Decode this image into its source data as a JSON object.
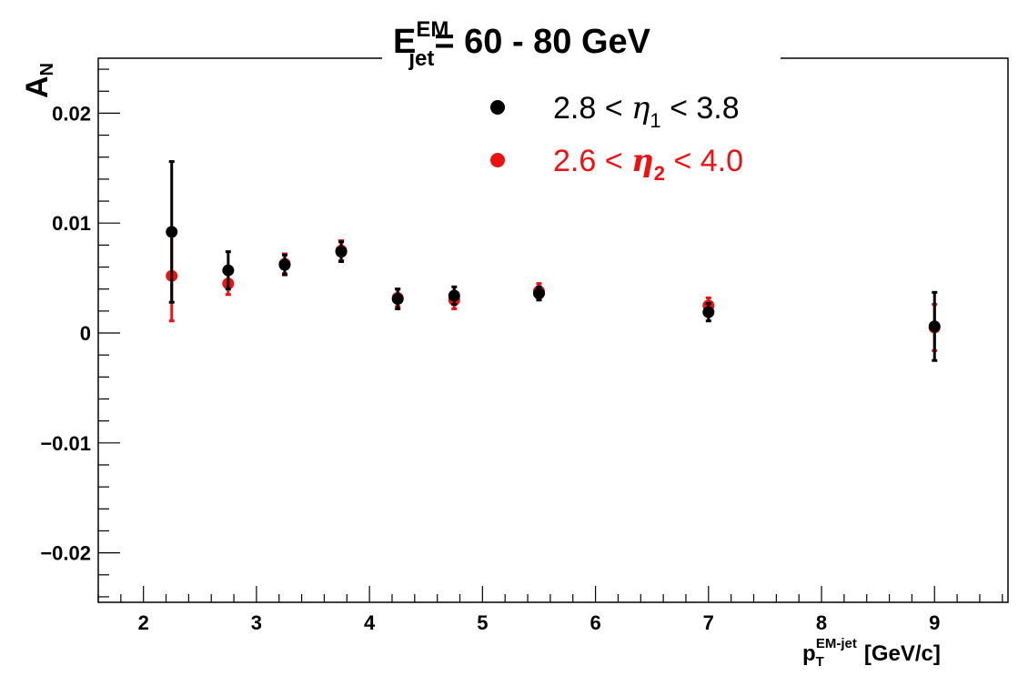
{
  "chart_data": {
    "type": "scatter",
    "title": {
      "main": "E",
      "sup": "EM",
      "sub": "jet",
      "rest": "= 60 - 80 GeV"
    },
    "ylabel": {
      "main": "A",
      "sub": "N"
    },
    "xlabel": {
      "main": "p",
      "sub": "T",
      "sup": "EM-jet",
      "unit": "[GeV/c]"
    },
    "xlim": [
      1.6,
      9.65
    ],
    "ylim": [
      -0.0245,
      0.025
    ],
    "x_ticks": [
      {
        "value": 2,
        "label": "2"
      },
      {
        "value": 3,
        "label": "3"
      },
      {
        "value": 4,
        "label": "4"
      },
      {
        "value": 5,
        "label": "5"
      },
      {
        "value": 6,
        "label": "6"
      },
      {
        "value": 7,
        "label": "7"
      },
      {
        "value": 8,
        "label": "8"
      },
      {
        "value": 9,
        "label": "9"
      }
    ],
    "y_ticks": [
      {
        "value": 0.02,
        "label": "0.02"
      },
      {
        "value": 0.01,
        "label": "0.01"
      },
      {
        "value": 0,
        "label": "0"
      },
      {
        "value": -0.01,
        "label": "−0.01"
      },
      {
        "value": -0.02,
        "label": "−0.02"
      }
    ],
    "grid": false,
    "legend_position": "top-right",
    "series": [
      {
        "name_parts": {
          "pre": "2.6 < ",
          "eta": "η",
          "sub": "2",
          "post": " < 4.0"
        },
        "color": "#ee1111",
        "points": [
          {
            "x": 2.25,
            "y": 0.0052,
            "err": 0.0041
          },
          {
            "x": 2.75,
            "y": 0.0045,
            "err": 0.001
          },
          {
            "x": 3.25,
            "y": 0.0063,
            "err": 0.0009
          },
          {
            "x": 3.75,
            "y": 0.0075,
            "err": 0.0009
          },
          {
            "x": 4.25,
            "y": 0.0032,
            "err": 0.0008
          },
          {
            "x": 4.75,
            "y": 0.003,
            "err": 0.0008
          },
          {
            "x": 5.5,
            "y": 0.0038,
            "err": 0.0007
          },
          {
            "x": 7.0,
            "y": 0.0025,
            "err": 0.0007
          },
          {
            "x": 9.0,
            "y": 0.0005,
            "err": 0.0021
          }
        ]
      },
      {
        "name_parts": {
          "pre": "2.8 < ",
          "eta": "η",
          "sub": "1",
          "post": " < 3.8"
        },
        "color": "#000000",
        "points": [
          {
            "x": 2.25,
            "y": 0.0092,
            "err": 0.0064
          },
          {
            "x": 2.75,
            "y": 0.0057,
            "err": 0.0017
          },
          {
            "x": 3.25,
            "y": 0.0062,
            "err": 0.0009
          },
          {
            "x": 3.75,
            "y": 0.0074,
            "err": 0.0009
          },
          {
            "x": 4.25,
            "y": 0.0031,
            "err": 0.0009
          },
          {
            "x": 4.75,
            "y": 0.0034,
            "err": 0.0008
          },
          {
            "x": 5.5,
            "y": 0.0036,
            "err": 0.0006
          },
          {
            "x": 7.0,
            "y": 0.0019,
            "err": 0.0008
          },
          {
            "x": 9.0,
            "y": 0.0006,
            "err": 0.0031
          }
        ]
      }
    ]
  }
}
